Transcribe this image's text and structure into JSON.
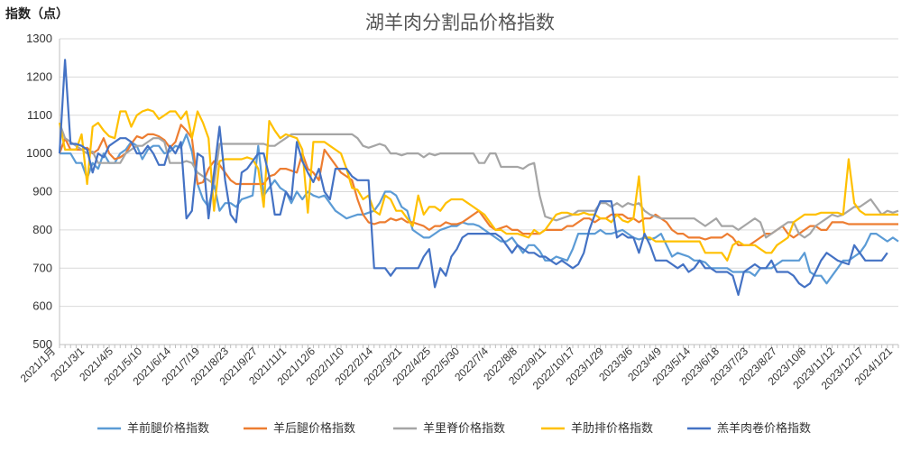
{
  "chart_data": {
    "type": "line",
    "title": "湖羊肉分割品价格指数",
    "ylabel": "指数（点）",
    "xlabel": "",
    "ylim": [
      500,
      1300
    ],
    "yticks": [
      500,
      600,
      700,
      800,
      900,
      1000,
      1100,
      1200,
      1300
    ],
    "grid": true,
    "legend": "bottom",
    "x_tick_labels": [
      "2021/1月",
      "2021/3/1",
      "2021/4/5",
      "2021/5/10",
      "2021/6/14",
      "2021/7/19",
      "2021/8/23",
      "2021/9/27",
      "2021/11/1",
      "2021/12/6",
      "2022/1/10",
      "2022/2/14",
      "2022/3/21",
      "2022/4/25",
      "2022/5/30",
      "2022/7/4",
      "2022/8/8",
      "2022/9/11",
      "2022/10/17",
      "2023/1/29",
      "2023/3/6",
      "2023/4/9",
      "2023/5/14",
      "2023/6/18",
      "2023/7/23",
      "2023/8/27",
      "2023/10/8",
      "2023/11/12",
      "2023/12/17",
      "2024/1/21"
    ],
    "series": [
      {
        "name": "羊前腿价格指数",
        "color": "#5b9bd5",
        "values": [
          1000,
          1000,
          1000,
          975,
          975,
          935,
          975,
          960,
          1000,
          975,
          975,
          1000,
          1010,
          1030,
          1020,
          985,
          1010,
          1020,
          1020,
          1000,
          1005,
          1020,
          1015,
          1050,
          1005,
          920,
          880,
          860,
          920,
          850,
          870,
          870,
          860,
          880,
          885,
          890,
          1020,
          890,
          910,
          930,
          910,
          900,
          870,
          900,
          880,
          900,
          890,
          885,
          890,
          870,
          850,
          840,
          830,
          835,
          840,
          840,
          845,
          850,
          870,
          900,
          900,
          890,
          860,
          850,
          800,
          790,
          780,
          780,
          790,
          800,
          805,
          810,
          810,
          820,
          815,
          815,
          810,
          800,
          790,
          780,
          770,
          770,
          780,
          760,
          740,
          760,
          760,
          745,
          720,
          720,
          730,
          725,
          720,
          750,
          790,
          790,
          790,
          790,
          800,
          790,
          790,
          795,
          800,
          790,
          780,
          775,
          780,
          775,
          780,
          790,
          760,
          730,
          740,
          735,
          730,
          720,
          720,
          715,
          700,
          700,
          700,
          700,
          690,
          690,
          690,
          690,
          680,
          700,
          700,
          700,
          710,
          720,
          720,
          720,
          720,
          740,
          690,
          680,
          680,
          660,
          680,
          700,
          720,
          720,
          730,
          740,
          760,
          790,
          790,
          780,
          770,
          780,
          770
        ]
      },
      {
        "name": "羊后腿价格指数",
        "color": "#ed7d31",
        "values": [
          1000,
          1040,
          1010,
          1010,
          1010,
          1015,
          1000,
          1010,
          1040,
          1000,
          985,
          990,
          1000,
          1025,
          1045,
          1040,
          1050,
          1050,
          1045,
          1035,
          1015,
          1030,
          1075,
          1060,
          1040,
          920,
          925,
          960,
          980,
          970,
          950,
          930,
          920,
          920,
          920,
          920,
          920,
          920,
          940,
          945,
          960,
          960,
          955,
          950,
          1000,
          960,
          950,
          930,
          1010,
          990,
          970,
          950,
          940,
          930,
          880,
          840,
          820,
          815,
          820,
          820,
          830,
          825,
          830,
          820,
          820,
          815,
          810,
          800,
          810,
          810,
          820,
          815,
          815,
          820,
          830,
          840,
          850,
          830,
          810,
          800,
          805,
          810,
          800,
          800,
          790,
          790,
          790,
          790,
          800,
          800,
          800,
          800,
          810,
          810,
          820,
          830,
          830,
          820,
          830,
          830,
          840,
          840,
          840,
          830,
          830,
          820,
          830,
          830,
          840,
          830,
          820,
          800,
          790,
          790,
          780,
          780,
          780,
          775,
          780,
          780,
          780,
          790,
          780,
          760,
          760,
          760,
          770,
          780,
          790,
          790,
          800,
          810,
          790,
          780,
          790,
          800,
          810,
          810,
          800,
          800,
          820,
          820,
          820,
          815,
          815,
          815,
          815,
          815,
          815,
          815,
          815,
          815,
          815
        ]
      },
      {
        "name": "羊里脊价格指数",
        "color": "#a5a5a5",
        "values": [
          1080,
          1040,
          1030,
          1020,
          1010,
          1000,
          1005,
          975,
          975,
          975,
          975,
          975,
          1000,
          1010,
          1020,
          1020,
          1030,
          1040,
          1040,
          1030,
          975,
          975,
          975,
          980,
          975,
          950,
          940,
          930,
          920,
          1025,
          1025,
          1025,
          1025,
          1025,
          1025,
          1025,
          1025,
          1025,
          1020,
          1020,
          1030,
          1040,
          1050,
          1050,
          1050,
          1050,
          1050,
          1050,
          1050,
          1050,
          1050,
          1050,
          1050,
          1050,
          1040,
          1020,
          1015,
          1020,
          1025,
          1020,
          1000,
          1000,
          995,
          1000,
          1000,
          1000,
          990,
          1000,
          995,
          1000,
          1000,
          1000,
          1000,
          1000,
          1000,
          1000,
          975,
          975,
          1000,
          1000,
          965,
          965,
          965,
          965,
          960,
          970,
          975,
          890,
          835,
          830,
          825,
          830,
          835,
          840,
          850,
          850,
          850,
          850,
          870,
          870,
          860,
          870,
          860,
          870,
          865,
          870,
          850,
          840,
          835,
          830,
          830,
          830,
          830,
          830,
          830,
          830,
          820,
          810,
          820,
          830,
          810,
          810,
          810,
          800,
          810,
          820,
          830,
          820,
          780,
          790,
          800,
          810,
          820,
          820,
          790,
          780,
          790,
          810,
          820,
          830,
          840,
          835,
          840,
          850,
          860,
          860,
          870,
          880,
          860,
          840,
          850,
          845,
          850
        ]
      },
      {
        "name": "羊肋排价格指数",
        "color": "#ffc000",
        "values": [
          1080,
          1010,
          1010,
          1010,
          1050,
          920,
          1070,
          1080,
          1060,
          1045,
          1040,
          1110,
          1110,
          1070,
          1100,
          1110,
          1115,
          1110,
          1090,
          1100,
          1110,
          1110,
          1090,
          1110,
          1040,
          1110,
          1080,
          1040,
          850,
          980,
          985,
          985,
          985,
          985,
          990,
          985,
          960,
          860,
          1085,
          1060,
          1040,
          1050,
          1045,
          1040,
          1010,
          845,
          1030,
          1030,
          1030,
          1020,
          1010,
          1000,
          960,
          910,
          905,
          880,
          890,
          850,
          840,
          890,
          880,
          850,
          850,
          830,
          810,
          890,
          840,
          860,
          860,
          850,
          870,
          880,
          880,
          880,
          870,
          860,
          850,
          840,
          820,
          800,
          800,
          790,
          790,
          790,
          785,
          780,
          800,
          790,
          800,
          820,
          840,
          845,
          845,
          840,
          840,
          845,
          840,
          840,
          830,
          830,
          820,
          840,
          825,
          820,
          830,
          940,
          780,
          780,
          770,
          770,
          770,
          770,
          770,
          770,
          770,
          770,
          770,
          740,
          740,
          740,
          740,
          720,
          760,
          770,
          760,
          760,
          760,
          750,
          740,
          740,
          760,
          770,
          780,
          820,
          830,
          840,
          840,
          840,
          845,
          845,
          845,
          845,
          840,
          985,
          870,
          850,
          840,
          840,
          840,
          840,
          840,
          840,
          840
        ]
      },
      {
        "name": "羔羊肉卷价格指数",
        "color": "#4472c4",
        "values": [
          1000,
          1245,
          1025,
          1025,
          1020,
          1010,
          950,
          1000,
          990,
          1020,
          1030,
          1040,
          1040,
          1030,
          1000,
          1000,
          1020,
          1000,
          970,
          970,
          1020,
          1000,
          1030,
          830,
          850,
          1000,
          990,
          830,
          950,
          1070,
          930,
          840,
          820,
          950,
          960,
          980,
          1000,
          1000,
          940,
          840,
          840,
          900,
          880,
          1030,
          980,
          950,
          925,
          960,
          900,
          880,
          960,
          960,
          960,
          940,
          930,
          930,
          930,
          700,
          700,
          700,
          680,
          700,
          700,
          700,
          700,
          700,
          730,
          750,
          650,
          700,
          680,
          730,
          750,
          780,
          790,
          790,
          790,
          790,
          790,
          790,
          780,
          760,
          740,
          760,
          750,
          740,
          740,
          730,
          730,
          720,
          710,
          720,
          710,
          700,
          710,
          740,
          800,
          840,
          875,
          875,
          875,
          780,
          790,
          780,
          780,
          740,
          790,
          760,
          720,
          720,
          720,
          710,
          700,
          710,
          690,
          700,
          720,
          700,
          700,
          690,
          690,
          690,
          680,
          630,
          690,
          700,
          710,
          700,
          700,
          720,
          690,
          690,
          690,
          680,
          660,
          650,
          660,
          690,
          720,
          740,
          730,
          720,
          715,
          710,
          760,
          740,
          720,
          720,
          720,
          720,
          740
        ]
      }
    ]
  }
}
